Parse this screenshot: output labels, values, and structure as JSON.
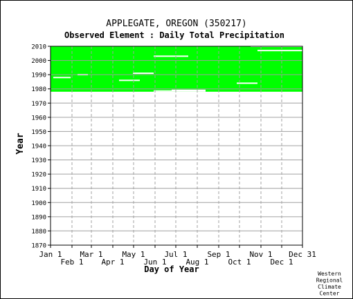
{
  "chart_data": {
    "type": "heatmap",
    "title": "APPLEGATE, OREGON   (350217)",
    "subtitle": "Observed Element : Daily Total Precipitation",
    "xlabel": "Day of Year",
    "ylabel": "Year",
    "credit": [
      "Western",
      "Regional",
      "Climate",
      "Center"
    ],
    "x_range": [
      1,
      365
    ],
    "y_range": [
      1870,
      2010
    ],
    "y_ticks": [
      2010,
      2000,
      1990,
      1980,
      1970,
      1960,
      1950,
      1940,
      1930,
      1920,
      1910,
      1900,
      1890,
      1880,
      1870
    ],
    "x_ticks": [
      {
        "label": "Jan 1",
        "day": 1
      },
      {
        "label": "Feb 1",
        "day": 32
      },
      {
        "label": "Mar 1",
        "day": 60
      },
      {
        "label": "Apr 1",
        "day": 91
      },
      {
        "label": "May 1",
        "day": 121
      },
      {
        "label": "Jun 1",
        "day": 152
      },
      {
        "label": "Jul 1",
        "day": 182
      },
      {
        "label": "Aug 1",
        "day": 213
      },
      {
        "label": "Sep 1",
        "day": 244
      },
      {
        "label": "Oct 1",
        "day": 274
      },
      {
        "label": "Nov 1",
        "day": 305
      },
      {
        "label": "Dec 1",
        "day": 335
      },
      {
        "label": "Dec 31",
        "day": 365
      }
    ],
    "grid": true,
    "data_color": "#00ff00",
    "data_blocks": [
      {
        "year_start": 1978,
        "year_end": 2009.5,
        "day_start": 1,
        "day_end": 365
      },
      {
        "year_start": 2009.5,
        "year_end": 2010,
        "day_start": 1,
        "day_end": 290
      }
    ],
    "gaps": [
      {
        "year": 1990,
        "day_start": 40,
        "day_end": 55
      },
      {
        "year": 1988,
        "day_start": 5,
        "day_end": 30
      },
      {
        "year": 1986,
        "day_start": 100,
        "day_end": 130
      },
      {
        "year": 1979,
        "day_start": 176,
        "day_end": 225
      },
      {
        "year": 1978.5,
        "day_start": 150,
        "day_end": 225
      },
      {
        "year": 2003,
        "day_start": 150,
        "day_end": 200
      },
      {
        "year": 2007,
        "day_start": 300,
        "day_end": 365
      },
      {
        "year": 1984,
        "day_start": 270,
        "day_end": 300
      },
      {
        "year": 1991,
        "day_start": 120,
        "day_end": 150
      }
    ]
  }
}
